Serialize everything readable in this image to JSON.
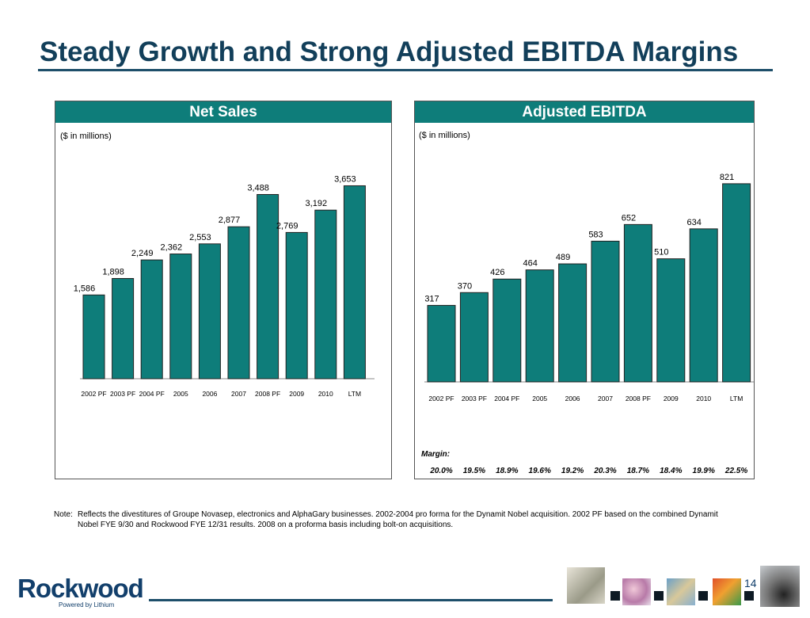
{
  "title": "Steady Growth and Strong Adjusted EBITDA Margins",
  "chart_data": [
    {
      "type": "bar",
      "title": "Net Sales",
      "ylabel": "($ in millions)",
      "categories": [
        "2002 PF",
        "2003 PF",
        "2004 PF",
        "2005",
        "2006",
        "2007",
        "2008 PF",
        "2009",
        "2010",
        "LTM"
      ],
      "values": [
        1586,
        1898,
        2249,
        2362,
        2553,
        2877,
        3488,
        2769,
        3192,
        3653
      ],
      "value_labels": [
        "1,586",
        "1,898",
        "2,249",
        "2,362",
        "2,553",
        "2,877",
        "3,488",
        "2,769",
        "3,192",
        "3,653"
      ],
      "color": "#0e7d7a",
      "ylim": [
        0,
        3900
      ]
    },
    {
      "type": "bar",
      "title": "Adjusted EBITDA",
      "ylabel": "($ in millions)",
      "categories": [
        "2002 PF",
        "2003 PF",
        "2004 PF",
        "2005",
        "2006",
        "2007",
        "2008 PF",
        "2009",
        "2010",
        "LTM"
      ],
      "values": [
        317,
        370,
        426,
        464,
        489,
        583,
        652,
        510,
        634,
        821
      ],
      "value_labels": [
        "317",
        "370",
        "426",
        "464",
        "489",
        "583",
        "652",
        "510",
        "634",
        "821"
      ],
      "color": "#0e7d7a",
      "ylim": [
        0,
        860
      ],
      "margin_label": "Margin:",
      "margins": [
        "20.0%",
        "19.5%",
        "18.9%",
        "19.6%",
        "19.2%",
        "20.3%",
        "18.7%",
        "18.4%",
        "19.9%",
        "22.5%"
      ]
    }
  ],
  "note": {
    "prefix": "Note:",
    "text": "Reflects the divestitures of Groupe Novasep, electronics and AlphaGary businesses. 2002-2004 pro forma for the Dynamit Nobel acquisition. 2002 PF based on the combined Dynamit Nobel FYE 9/30 and Rockwood FYE 12/31 results. 2008 on a proforma basis including bolt-on acquisitions."
  },
  "logo": {
    "name": "Rockwood",
    "tagline": "Powered by Lithium"
  },
  "page_number": "14"
}
